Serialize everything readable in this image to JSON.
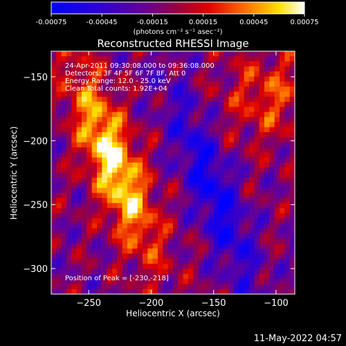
{
  "chart_data": {
    "type": "heatmap",
    "title": "Reconstructed RHESSI Image",
    "xlabel": "Heliocentric X (arcsec)",
    "ylabel": "Heliocentric Y (arcsec)",
    "xlim": [
      -280,
      -85
    ],
    "ylim": [
      -320,
      -130
    ],
    "xticks": [
      -250,
      -200,
      -150,
      -100
    ],
    "yticks": [
      -150,
      -200,
      -250,
      -300
    ],
    "colorbar": {
      "range": [
        -0.00075,
        0.00075
      ],
      "ticks": [
        "-0.00075",
        "-0.00045",
        "-0.00015",
        "0.00015",
        "0.00045",
        "0.00075"
      ],
      "unit_label": "(photons cm⁻² s⁻¹ asec⁻²)",
      "colormap": "blue-purple-red-yellow-white"
    },
    "annotations": [
      "24-Apr-2011 09:30:08.000 to 09:36:08.000",
      "Detectors: 3F 4F 5F 6F 7F 8F, Att 0",
      "Energy Range: 12.0 - 25.0 keV",
      "Clean     Total counts: 1.92E+04"
    ],
    "peak_label": "Position of Peak = [-230,-218]",
    "peak": [
      -230,
      -218
    ]
  },
  "footer": {
    "timestamp": "11-May-2022 04:57"
  }
}
